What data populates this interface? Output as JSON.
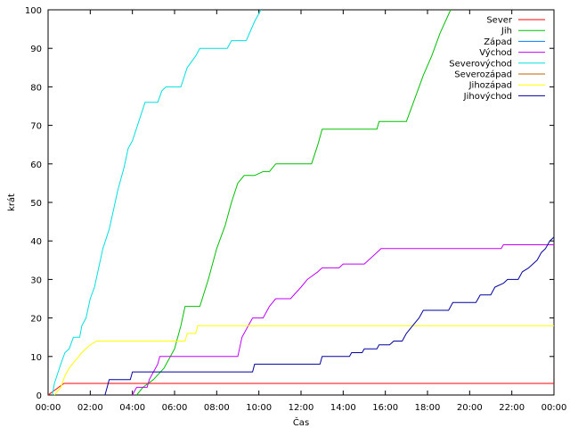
{
  "chart_data": {
    "type": "line",
    "title": "",
    "xlabel": "Čas",
    "ylabel": "krát",
    "xlim": [
      0,
      24
    ],
    "ylim": [
      0,
      100
    ],
    "xticks": [
      {
        "v": 0,
        "label": "00:00"
      },
      {
        "v": 2,
        "label": "02:00"
      },
      {
        "v": 4,
        "label": "04:00"
      },
      {
        "v": 6,
        "label": "06:00"
      },
      {
        "v": 8,
        "label": "08:00"
      },
      {
        "v": 10,
        "label": "10:00"
      },
      {
        "v": 12,
        "label": "12:00"
      },
      {
        "v": 14,
        "label": "14:00"
      },
      {
        "v": 16,
        "label": "16:00"
      },
      {
        "v": 18,
        "label": "18:00"
      },
      {
        "v": 20,
        "label": "20:00"
      },
      {
        "v": 22,
        "label": "22:00"
      },
      {
        "v": 24,
        "label": "00:00"
      }
    ],
    "yticks": [
      {
        "v": 0,
        "label": "0"
      },
      {
        "v": 10,
        "label": "10"
      },
      {
        "v": 20,
        "label": "20"
      },
      {
        "v": 30,
        "label": "30"
      },
      {
        "v": 40,
        "label": "40"
      },
      {
        "v": 50,
        "label": "50"
      },
      {
        "v": 60,
        "label": "60"
      },
      {
        "v": 70,
        "label": "70"
      },
      {
        "v": 80,
        "label": "80"
      },
      {
        "v": 90,
        "label": "90"
      },
      {
        "v": 100,
        "label": "100"
      }
    ],
    "grid": false,
    "legend_position": "top-right",
    "series": [
      {
        "name": "Sever",
        "color": "#ff0000",
        "points": [
          [
            0,
            0
          ],
          [
            0.5,
            2
          ],
          [
            0.75,
            3
          ],
          [
            24,
            3
          ]
        ]
      },
      {
        "name": "Jih",
        "color": "#00c000",
        "points": [
          [
            4.2,
            0
          ],
          [
            4.5,
            2
          ],
          [
            5.0,
            4
          ],
          [
            5.5,
            7
          ],
          [
            6.0,
            12
          ],
          [
            6.3,
            18
          ],
          [
            6.5,
            23
          ],
          [
            7.2,
            23
          ],
          [
            7.6,
            30
          ],
          [
            8.0,
            38
          ],
          [
            8.4,
            44
          ],
          [
            8.7,
            50
          ],
          [
            9.0,
            55
          ],
          [
            9.3,
            57
          ],
          [
            9.8,
            57
          ],
          [
            10.2,
            58
          ],
          [
            10.5,
            58
          ],
          [
            10.8,
            60
          ],
          [
            12.5,
            60
          ],
          [
            12.8,
            65
          ],
          [
            13.0,
            69
          ],
          [
            15.6,
            69
          ],
          [
            15.7,
            71
          ],
          [
            17.0,
            71
          ],
          [
            17.4,
            77
          ],
          [
            17.8,
            83
          ],
          [
            18.2,
            88
          ],
          [
            18.6,
            94
          ],
          [
            19.1,
            100
          ]
        ]
      },
      {
        "name": "Západ",
        "color": "#0080ff",
        "points": []
      },
      {
        "name": "Východ",
        "color": "#c000ff",
        "points": [
          [
            4.0,
            0
          ],
          [
            4.2,
            2
          ],
          [
            4.7,
            2
          ],
          [
            4.8,
            4
          ],
          [
            5.0,
            6
          ],
          [
            5.2,
            8
          ],
          [
            5.3,
            10
          ],
          [
            7.2,
            10
          ],
          [
            9.0,
            10
          ],
          [
            9.2,
            15
          ],
          [
            9.5,
            18
          ],
          [
            9.7,
            20
          ],
          [
            10.2,
            20
          ],
          [
            10.5,
            23
          ],
          [
            10.8,
            25
          ],
          [
            11.5,
            25
          ],
          [
            12.0,
            28
          ],
          [
            12.3,
            30
          ],
          [
            12.8,
            32
          ],
          [
            13.0,
            33
          ],
          [
            13.8,
            33
          ],
          [
            14.0,
            34
          ],
          [
            15.0,
            34
          ],
          [
            15.4,
            36
          ],
          [
            15.8,
            38
          ],
          [
            17.0,
            38
          ],
          [
            21.5,
            38
          ],
          [
            21.6,
            39
          ],
          [
            24,
            39
          ]
        ]
      },
      {
        "name": "Severovýchod",
        "color": "#00e0e0",
        "points": [
          [
            0.2,
            0
          ],
          [
            0.3,
            3
          ],
          [
            0.6,
            8
          ],
          [
            0.8,
            11
          ],
          [
            1.0,
            12
          ],
          [
            1.2,
            15
          ],
          [
            1.5,
            15
          ],
          [
            1.6,
            18
          ],
          [
            1.8,
            20
          ],
          [
            2.0,
            25
          ],
          [
            2.2,
            28
          ],
          [
            2.4,
            33
          ],
          [
            2.6,
            38
          ],
          [
            2.9,
            43
          ],
          [
            3.1,
            48
          ],
          [
            3.3,
            53
          ],
          [
            3.6,
            59
          ],
          [
            3.8,
            64
          ],
          [
            4.0,
            66
          ],
          [
            4.3,
            71
          ],
          [
            4.6,
            76
          ],
          [
            5.2,
            76
          ],
          [
            5.4,
            79
          ],
          [
            5.6,
            80
          ],
          [
            6.3,
            80
          ],
          [
            6.6,
            85
          ],
          [
            7.0,
            88
          ],
          [
            7.2,
            90
          ],
          [
            8.5,
            90
          ],
          [
            8.7,
            92
          ],
          [
            9.4,
            92
          ],
          [
            9.8,
            97
          ],
          [
            10.1,
            100
          ]
        ]
      },
      {
        "name": "Severozápad",
        "color": "#c06000",
        "points": []
      },
      {
        "name": "Jihozápad",
        "color": "#ffff00",
        "points": [
          [
            0.3,
            0
          ],
          [
            0.6,
            2
          ],
          [
            0.8,
            5
          ],
          [
            1.0,
            7
          ],
          [
            1.3,
            9
          ],
          [
            1.6,
            11
          ],
          [
            2.0,
            13
          ],
          [
            2.3,
            14
          ],
          [
            6.5,
            14
          ],
          [
            6.6,
            16
          ],
          [
            7.0,
            16
          ],
          [
            7.1,
            18
          ],
          [
            24,
            18
          ]
        ]
      },
      {
        "name": "Jihovýchod",
        "color": "#0000a0",
        "points": [
          [
            2.7,
            0
          ],
          [
            2.8,
            2
          ],
          [
            2.9,
            4
          ],
          [
            3.9,
            4
          ],
          [
            4.0,
            6
          ],
          [
            6.0,
            6
          ],
          [
            9.7,
            6
          ],
          [
            9.8,
            8
          ],
          [
            12.9,
            8
          ],
          [
            13.0,
            10
          ],
          [
            14.3,
            10
          ],
          [
            14.4,
            11
          ],
          [
            14.9,
            11
          ],
          [
            15.0,
            12
          ],
          [
            15.6,
            12
          ],
          [
            15.7,
            13
          ],
          [
            16.2,
            13
          ],
          [
            16.4,
            14
          ],
          [
            16.8,
            14
          ],
          [
            17.0,
            16
          ],
          [
            17.3,
            18
          ],
          [
            17.6,
            20
          ],
          [
            17.8,
            22
          ],
          [
            19.0,
            22
          ],
          [
            19.2,
            24
          ],
          [
            20.3,
            24
          ],
          [
            20.5,
            26
          ],
          [
            21.0,
            26
          ],
          [
            21.2,
            28
          ],
          [
            21.6,
            29
          ],
          [
            21.8,
            30
          ],
          [
            22.3,
            30
          ],
          [
            22.5,
            32
          ],
          [
            22.8,
            33
          ],
          [
            23.2,
            35
          ],
          [
            23.4,
            37
          ],
          [
            23.6,
            38
          ],
          [
            23.8,
            40
          ],
          [
            24,
            41
          ]
        ]
      }
    ]
  }
}
